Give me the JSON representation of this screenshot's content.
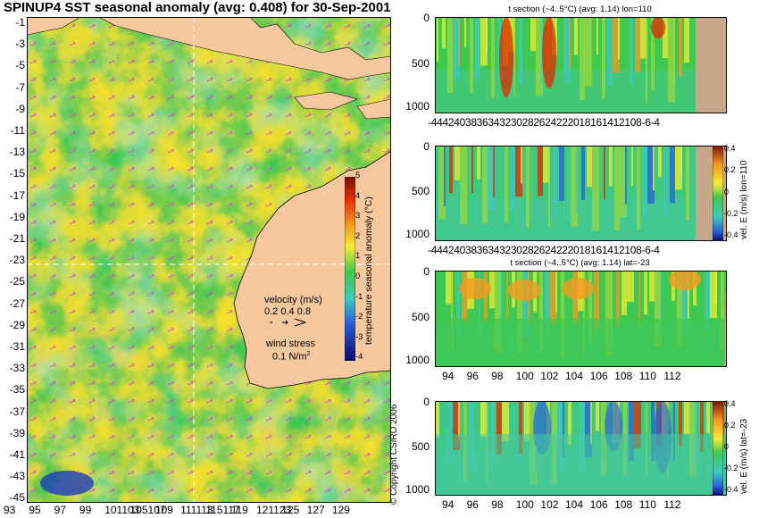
{
  "map": {
    "title": "SPINUP4 SST seasonal anomaly (avg: 0.408) for 30-Sep-2001",
    "lat_labels": [
      "-1",
      "-3",
      "-5",
      "-7",
      "-9",
      "-11",
      "-13",
      "-15",
      "-17",
      "-19",
      "-21",
      "-23",
      "-25",
      "-27",
      "-29",
      "-31",
      "-33",
      "-35",
      "-37",
      "-39",
      "-41",
      "-43",
      "-45"
    ],
    "lon_labels": [
      "93",
      "95",
      "97",
      "99",
      "101",
      "103",
      "105",
      "107",
      "109",
      "111",
      "113",
      "115",
      "117",
      "119",
      "121",
      "123",
      "125",
      "127",
      "129"
    ],
    "lon_display": [
      "93",
      "95",
      "97",
      "99",
      "101103",
      "105107",
      "109",
      "111113",
      "115117",
      "119",
      "121123",
      "125",
      "127",
      "129"
    ],
    "colorbar_label": "temperature seasonal anomaly (°C)",
    "colorbar_ticks": [
      "5",
      "4",
      "3",
      "2",
      "1",
      "0",
      "-1",
      "-2",
      "-3",
      "-4"
    ],
    "velocity_legend": "velocity (m/s)",
    "velocity_scale": "0.2 0.4 0.8",
    "wind_legend": "wind stress",
    "wind_scale": "0.1 N/m",
    "wind_scale_sup": "2",
    "copyright": "© Copyright CSIRO 2006",
    "colors": {
      "land": "#f7c79e",
      "water_base": "#2ec84a",
      "vectors": "#e040e0",
      "section_land": "#c8a68a"
    }
  },
  "sections": [
    {
      "title": "t section (~4..5°C) (avg: 1.14) lon=110",
      "y_ticks": [
        "0",
        "500",
        "1000"
      ],
      "x_ticks": "-4442403836343230282624222018161412108-6-4",
      "colorbar": false
    },
    {
      "title": "",
      "y_ticks": [
        "0",
        "500",
        "1000"
      ],
      "x_ticks": "-4442403836343230282624222018161412108-6-4",
      "colorbar": true,
      "colorbar_label": "vel. E (m/s) lon=110",
      "colorbar_ticks": [
        "0.4",
        "0.2",
        "0",
        "-0.2",
        "-0.4"
      ]
    },
    {
      "title": "t section (~4..5°C) (avg: 1.14) lat=-23",
      "y_ticks": [
        "0",
        "500",
        "1000"
      ],
      "x_ticks": [
        "94",
        "96",
        "98",
        "100",
        "102",
        "104",
        "106",
        "108",
        "110",
        "112"
      ],
      "colorbar": false
    },
    {
      "title": "",
      "y_ticks": [
        "0",
        "500",
        "1000"
      ],
      "x_ticks": [
        "94",
        "96",
        "98",
        "100",
        "102",
        "104",
        "106",
        "108",
        "110",
        "112"
      ],
      "colorbar": true,
      "colorbar_label": "vel. E (m/s) lat=-23",
      "colorbar_ticks": [
        "0.4",
        "0.2",
        "0",
        "-0.2",
        "-0.4"
      ]
    }
  ]
}
